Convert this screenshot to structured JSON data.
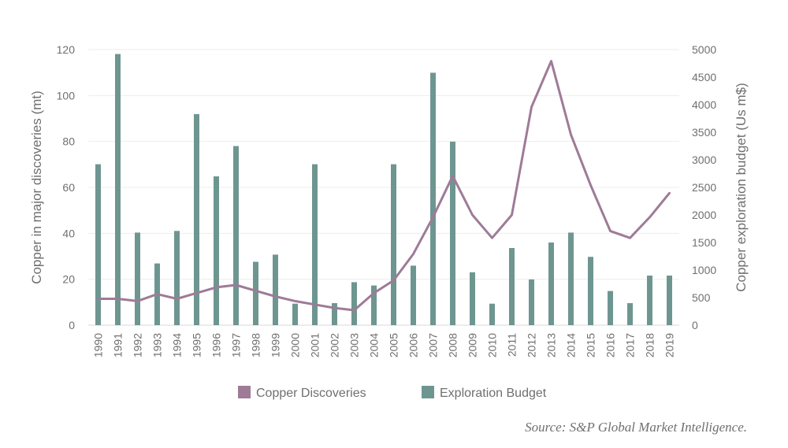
{
  "chart_data": {
    "type": "bar+line",
    "categories": [
      "1990",
      "1991",
      "1992",
      "1993",
      "1994",
      "1995",
      "1996",
      "1997",
      "1998",
      "1999",
      "2000",
      "2001",
      "2002",
      "2003",
      "2004",
      "2005",
      "2006",
      "2007",
      "2008",
      "2009",
      "2010",
      "2011",
      "2012",
      "2013",
      "2014",
      "2015",
      "2016",
      "2017",
      "2018",
      "2019"
    ],
    "series": [
      {
        "name": "Copper Discoveries",
        "type": "line",
        "axis": "left",
        "color": "#9e7b97",
        "values": [
          11.5,
          11.5,
          10.5,
          13.5,
          11.5,
          14,
          16.5,
          17.5,
          15,
          12.5,
          10.5,
          9,
          7.5,
          6.5,
          14,
          19.5,
          31,
          47,
          65,
          48,
          38,
          48,
          95,
          115,
          83,
          61,
          41,
          38,
          47,
          57.5
        ]
      },
      {
        "name": "Exploration Budget",
        "type": "bar",
        "axis": "right",
        "color": "#6e9690",
        "values": [
          2920,
          4920,
          1680,
          1120,
          1710,
          3830,
          2700,
          3250,
          1150,
          1280,
          390,
          2920,
          400,
          780,
          720,
          2920,
          1080,
          4580,
          3330,
          960,
          390,
          1400,
          830,
          1500,
          1680,
          1240,
          620,
          400,
          900,
          900
        ]
      }
    ],
    "ylabel": "Copper in major discoveries (mt)",
    "ylabel_right": "Copper exploration budget (Us m$)",
    "ylim": [
      0,
      120
    ],
    "ylim_right": [
      0,
      5000
    ],
    "yticks": [
      "0",
      "20",
      "40",
      "60",
      "80",
      "100",
      "120"
    ],
    "yticks_right": [
      "0",
      "500",
      "1000",
      "1500",
      "2000",
      "2500",
      "3000",
      "3500",
      "4000",
      "4500",
      "5000"
    ],
    "grid": true,
    "legend_position": "bottom",
    "source": "Source: S&P Global Market Intelligence."
  }
}
